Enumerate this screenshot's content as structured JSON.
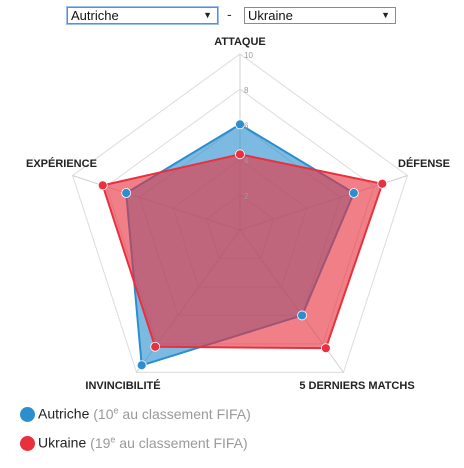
{
  "selectors": {
    "left": {
      "value": "Autriche"
    },
    "separator": "-",
    "right": {
      "value": "Ukraine"
    }
  },
  "icons": {
    "dropdown": "dropdown-arrow-icon",
    "legend_marker": "filled-circle-icon"
  },
  "chart_data": {
    "type": "radar",
    "axes": [
      "ATTAQUE",
      "DÉFENSE",
      "5 DERNIERS MATCHS",
      "INVINCIBILITÉ",
      "EXPÉRIENCE"
    ],
    "range": [
      0,
      10
    ],
    "ticks": [
      2,
      4,
      6,
      8,
      10
    ],
    "series": [
      {
        "name": "Autriche",
        "color": "#2b8fcf",
        "values": [
          6.0,
          6.8,
          6.0,
          9.5,
          6.8
        ]
      },
      {
        "name": "Ukraine",
        "color": "#e8303e",
        "values": [
          4.3,
          8.5,
          8.3,
          8.2,
          8.2
        ]
      }
    ],
    "legend_position": "bottom-left"
  },
  "legend": [
    {
      "name": "Autriche",
      "rank": "10",
      "suffix": "e",
      "rest": " au classement FIFA",
      "color": "#2b8fcf"
    },
    {
      "name": "Ukraine",
      "rank": "19",
      "suffix": "e",
      "rest": " au classement FIFA",
      "color": "#e8303e"
    }
  ]
}
